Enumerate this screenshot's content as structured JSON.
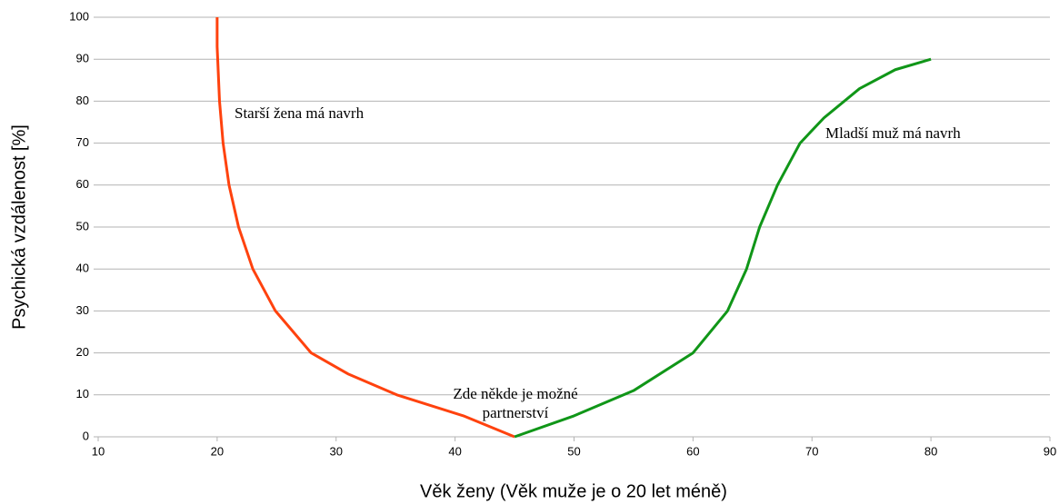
{
  "chart_data": {
    "type": "line",
    "x_label": "Věk ženy (Věk muže je o 20 let méně)",
    "y_label": "Psychická vzdálenost [%]",
    "series": [
      {
        "name": "Starší žena má navrh",
        "color": "#ff420e",
        "x": [
          20,
          20,
          20.2,
          20.5,
          21,
          21.8,
          23,
          24.9,
          27.9,
          31,
          35.1,
          40.7,
          45
        ],
        "values": [
          100,
          93,
          80,
          70,
          60,
          50,
          40,
          30,
          20,
          15,
          10,
          5,
          0
        ]
      },
      {
        "name": "Mladší muž má navrh",
        "color": "#109618",
        "x": [
          45,
          50,
          55,
          60,
          62.9,
          64.5,
          65.6,
          67.1,
          69,
          71,
          74,
          77,
          80
        ],
        "values": [
          0,
          5,
          11,
          20,
          30,
          40,
          50,
          60,
          70,
          76,
          83,
          87.5,
          90
        ]
      }
    ],
    "annotations": [
      "Zde někde je možné",
      "partnerství"
    ],
    "xlim": [
      10,
      90
    ],
    "xticks": [
      10,
      20,
      30,
      40,
      50,
      60,
      70,
      80,
      90
    ],
    "ylim": [
      0,
      100
    ],
    "yticks": [
      0,
      10,
      20,
      30,
      40,
      50,
      60,
      70,
      80,
      90,
      100
    ],
    "grid": true
  }
}
